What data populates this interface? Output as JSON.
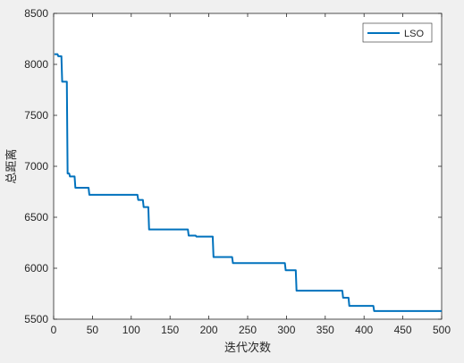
{
  "chart_data": {
    "type": "line",
    "title": "",
    "xlabel": "迭代次数",
    "ylabel": "总距离",
    "xlim": [
      0,
      500
    ],
    "ylim": [
      5500,
      8500
    ],
    "xticks": [
      0,
      50,
      100,
      150,
      200,
      250,
      300,
      350,
      400,
      450,
      500
    ],
    "yticks": [
      5500,
      6000,
      6500,
      7000,
      7500,
      8000,
      8500
    ],
    "grid": false,
    "legend_position": "top-right",
    "series": [
      {
        "name": "LSO",
        "color": "#0072bd",
        "x": [
          1,
          5,
          6,
          10,
          11,
          17,
          18,
          20,
          21,
          27,
          28,
          45,
          46,
          108,
          109,
          115,
          116,
          122,
          123,
          173,
          174,
          183,
          184,
          205,
          206,
          230,
          231,
          298,
          299,
          312,
          313,
          315,
          316,
          372,
          373,
          380,
          381,
          412,
          413,
          500
        ],
        "values": [
          8100,
          8100,
          8080,
          8080,
          7830,
          7830,
          6930,
          6930,
          6900,
          6900,
          6790,
          6790,
          6720,
          6720,
          6670,
          6670,
          6600,
          6600,
          6380,
          6380,
          6320,
          6320,
          6310,
          6310,
          6110,
          6110,
          6050,
          6050,
          5980,
          5980,
          5780,
          5780,
          5780,
          5780,
          5710,
          5710,
          5630,
          5630,
          5580,
          5580
        ]
      }
    ]
  }
}
